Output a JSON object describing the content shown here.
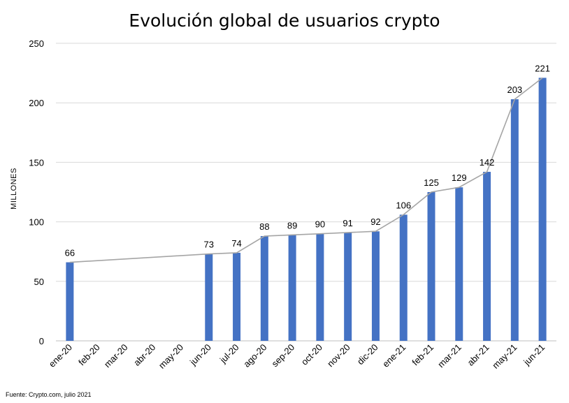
{
  "chart_data": {
    "type": "bar",
    "title": "Evolución global de usuarios crypto",
    "ylabel": "MILLONES",
    "xlabel": "",
    "ylim": [
      0,
      250
    ],
    "yticks": [
      0,
      50,
      100,
      150,
      200,
      250
    ],
    "grid": true,
    "legend": "none",
    "categories": [
      "ene-20",
      "feb-20",
      "mar-20",
      "abr-20",
      "may-20",
      "jun-20",
      "jul-20",
      "ago-20",
      "sep-20",
      "oct-20",
      "nov-20",
      "dic-20",
      "ene-21",
      "feb-21",
      "mar-21",
      "abr-21",
      "may-21",
      "jun-21"
    ],
    "values": [
      66,
      null,
      null,
      null,
      null,
      73,
      74,
      88,
      89,
      90,
      91,
      92,
      106,
      125,
      129,
      142,
      203,
      221
    ],
    "line_overlay": true,
    "colors": {
      "bar": "#4472C4",
      "line": "#A5A5A5",
      "grid": "#D9D9D9"
    },
    "source": "Fuente: Crypto.com, julio 2021"
  }
}
